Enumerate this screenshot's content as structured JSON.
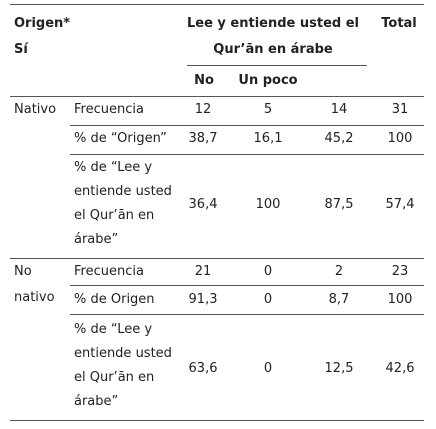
{
  "header": {
    "corner_line1": "Origen*",
    "corner_line2": "Sí",
    "question_line1": "Lee y entiende usted el",
    "question_line2": "Qur’ān en árabe",
    "total": "Total",
    "col_no": "No",
    "col_un_poco": "Un poco"
  },
  "groups": [
    {
      "label_line1": "Nativo",
      "rows": [
        {
          "label": [
            "Frecuencia"
          ],
          "values": [
            "12",
            "5",
            "14",
            "31"
          ]
        },
        {
          "label": [
            "% de “Origen”"
          ],
          "values": [
            "38,7",
            "16,1",
            "45,2",
            "100"
          ]
        },
        {
          "label": [
            "% de “Lee y",
            "entiende usted",
            "el Qur’ān en",
            "árabe”"
          ],
          "values": [
            "36,4",
            "100",
            "87,5",
            "57,4"
          ]
        }
      ]
    },
    {
      "label_line1": "No",
      "label_line2": "nativo",
      "rows": [
        {
          "label": [
            "Frecuencia"
          ],
          "values": [
            "21",
            "0",
            "2",
            "23"
          ]
        },
        {
          "label": [
            "% de Origen"
          ],
          "values": [
            "91,3",
            "0",
            "8,7",
            "100"
          ]
        },
        {
          "label": [
            "% de “Lee y",
            "entiende usted",
            "el Qur’ān en",
            "árabe”"
          ],
          "values": [
            "63,6",
            "0",
            "12,5",
            "42,6"
          ]
        }
      ]
    }
  ]
}
